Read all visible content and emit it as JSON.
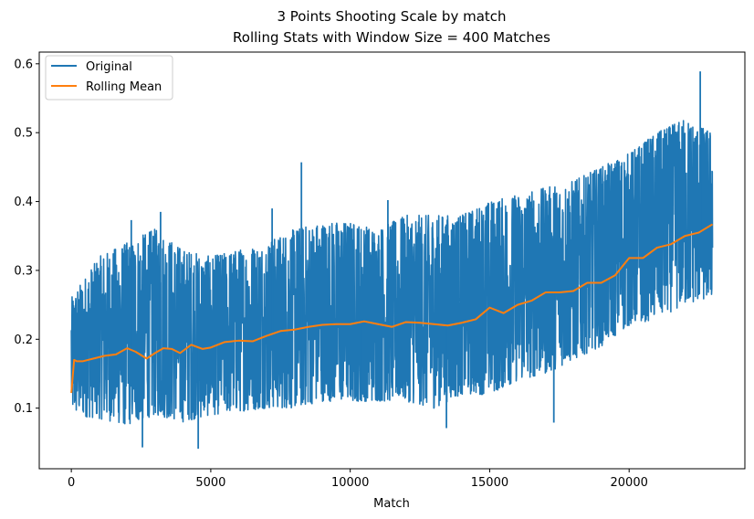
{
  "chart_data": {
    "type": "line",
    "title": "3 Points Shooting Scale by match",
    "subtitle": "Rolling Stats with Window Size = 400 Matches",
    "xlabel": "Match",
    "ylabel": "",
    "xlim": [
      -1150,
      24150
    ],
    "ylim": [
      0.012,
      0.617
    ],
    "x_ticks": [
      0,
      5000,
      10000,
      15000,
      20000
    ],
    "y_ticks": [
      0.1,
      0.2,
      0.3,
      0.4,
      0.5,
      0.6
    ],
    "x_tick_labels": [
      "0",
      "5000",
      "10000",
      "15000",
      "20000"
    ],
    "y_tick_labels": [
      "0.1",
      "0.2",
      "0.3",
      "0.4",
      "0.5",
      "0.6"
    ],
    "grid": false,
    "legend_position": "top-left",
    "x_range": [
      0,
      22990
    ],
    "series": [
      {
        "name": "Original",
        "color": "#1f77b4",
        "band": {
          "x": [
            0,
            1000,
            2000,
            3000,
            4000,
            5000,
            6000,
            7000,
            8000,
            9000,
            10000,
            11000,
            12000,
            13000,
            14000,
            15000,
            16000,
            17000,
            18000,
            19000,
            20000,
            21000,
            22000,
            22990
          ],
          "min": [
            0.09,
            0.085,
            0.075,
            0.09,
            0.08,
            0.09,
            0.095,
            0.1,
            0.1,
            0.11,
            0.11,
            0.11,
            0.11,
            0.1,
            0.12,
            0.12,
            0.14,
            0.15,
            0.17,
            0.19,
            0.22,
            0.23,
            0.25,
            0.26
          ],
          "max": [
            0.26,
            0.32,
            0.34,
            0.36,
            0.33,
            0.32,
            0.33,
            0.34,
            0.36,
            0.37,
            0.37,
            0.36,
            0.38,
            0.38,
            0.38,
            0.4,
            0.41,
            0.42,
            0.43,
            0.45,
            0.47,
            0.5,
            0.52,
            0.5
          ]
        },
        "spikes": [
          {
            "x": 2150,
            "y": 0.373
          },
          {
            "x": 2550,
            "y": 0.043
          },
          {
            "x": 3200,
            "y": 0.385
          },
          {
            "x": 4550,
            "y": 0.041
          },
          {
            "x": 7200,
            "y": 0.39
          },
          {
            "x": 8250,
            "y": 0.457
          },
          {
            "x": 10400,
            "y": 0.11
          },
          {
            "x": 11350,
            "y": 0.402
          },
          {
            "x": 13450,
            "y": 0.071
          },
          {
            "x": 17300,
            "y": 0.079
          },
          {
            "x": 22550,
            "y": 0.589
          }
        ]
      },
      {
        "name": "Rolling Mean",
        "color": "#ff7f0e",
        "x": [
          0,
          100,
          200,
          400,
          800,
          1200,
          1600,
          2000,
          2300,
          2700,
          3000,
          3300,
          3600,
          3900,
          4300,
          4700,
          5000,
          5500,
          6000,
          6500,
          7000,
          7500,
          8000,
          8500,
          9000,
          9500,
          10000,
          10500,
          11000,
          11500,
          12000,
          12500,
          13000,
          13500,
          14000,
          14500,
          15000,
          15500,
          16000,
          16500,
          17000,
          17500,
          18000,
          18500,
          19000,
          19500,
          20000,
          20500,
          21000,
          21500,
          22000,
          22500,
          22990
        ],
        "values": [
          0.122,
          0.17,
          0.168,
          0.168,
          0.172,
          0.176,
          0.178,
          0.187,
          0.182,
          0.172,
          0.18,
          0.187,
          0.186,
          0.18,
          0.192,
          0.186,
          0.188,
          0.196,
          0.198,
          0.197,
          0.205,
          0.212,
          0.214,
          0.218,
          0.221,
          0.222,
          0.222,
          0.226,
          0.222,
          0.218,
          0.225,
          0.224,
          0.222,
          0.22,
          0.224,
          0.229,
          0.246,
          0.238,
          0.25,
          0.256,
          0.268,
          0.268,
          0.27,
          0.282,
          0.282,
          0.293,
          0.318,
          0.318,
          0.333,
          0.338,
          0.35,
          0.355,
          0.367
        ]
      }
    ]
  }
}
